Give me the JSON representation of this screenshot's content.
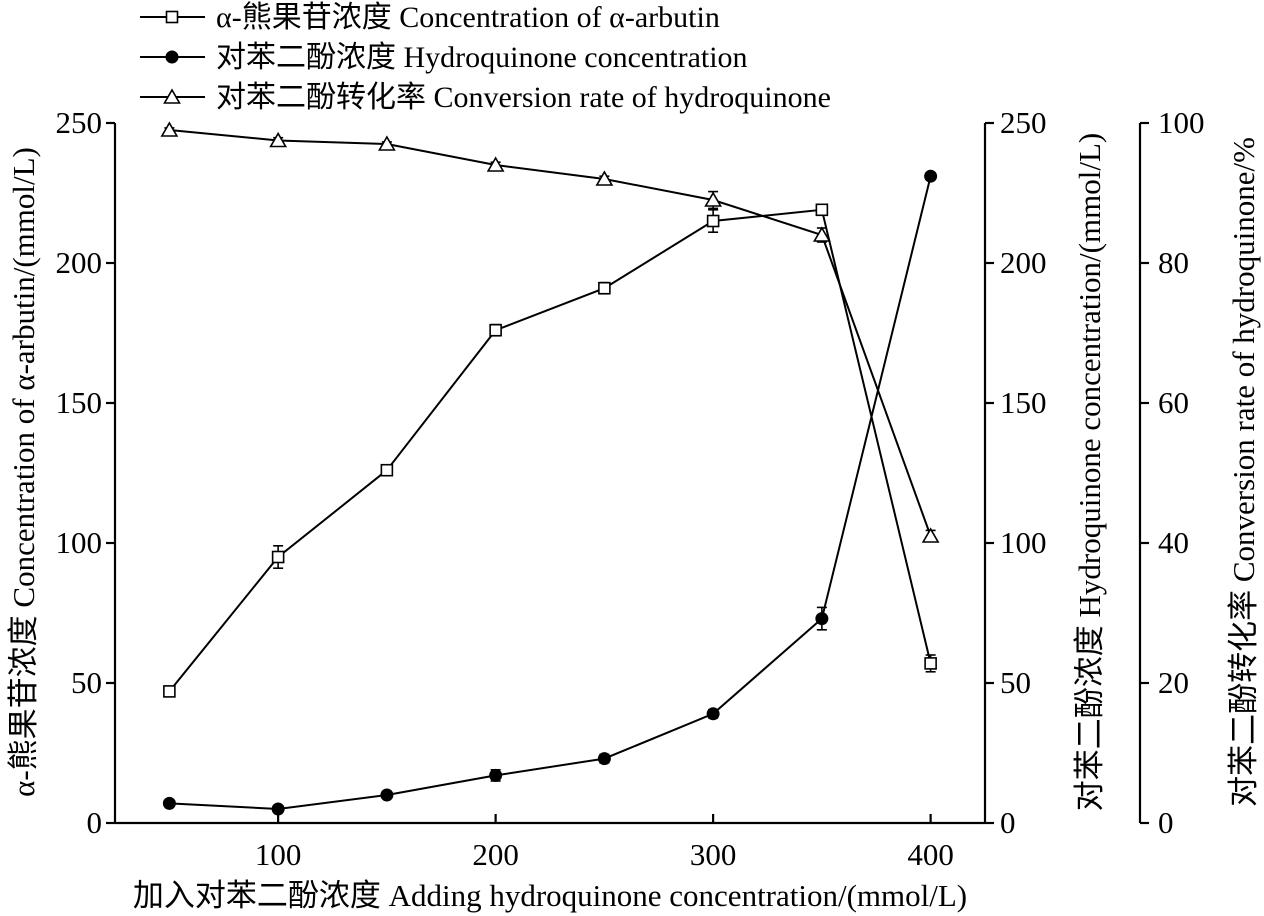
{
  "chart_data": {
    "type": "line",
    "xlabel": "加入对苯二酚浓度  Adding hydroquinone concentration/(mmol/L)",
    "x": [
      50,
      100,
      150,
      200,
      250,
      300,
      350,
      400
    ],
    "xticks": [
      100,
      200,
      300,
      400
    ],
    "xlim": [
      25,
      425
    ],
    "axes": [
      {
        "id": "left",
        "label": "α-熊果苷浓度 Concentration of α-arbutin/(mmol/L)",
        "ylim": [
          0,
          250
        ],
        "ticks": [
          0,
          50,
          100,
          150,
          200,
          250
        ]
      },
      {
        "id": "right1",
        "label": "对苯二酚浓度 Hydroquinone concentration/(mmol/L)",
        "ylim": [
          0,
          250
        ],
        "ticks": [
          0,
          50,
          100,
          150,
          200,
          250
        ]
      },
      {
        "id": "right2",
        "label": "对苯二酚转化率 Conversion rate of hydroquinone/%",
        "ylim": [
          0,
          100
        ],
        "ticks": [
          0,
          20,
          40,
          60,
          80,
          100
        ]
      }
    ],
    "series": [
      {
        "name": "α-熊果苷浓度 Concentration of α-arbutin",
        "axis": "left",
        "marker": "open-square",
        "values": [
          47,
          95,
          126,
          176,
          191,
          215,
          219,
          57
        ],
        "errors": [
          1,
          4,
          1,
          2,
          2,
          4,
          1,
          3
        ]
      },
      {
        "name": "对苯二酚浓度 Hydroquinone concentration",
        "axis": "right1",
        "marker": "filled-circle",
        "values": [
          7,
          5,
          10,
          17,
          23,
          39,
          73,
          231
        ],
        "errors": [
          0.5,
          0.5,
          0.5,
          2,
          1.5,
          1.5,
          4,
          1
        ]
      },
      {
        "name": "对苯二酚转化率 Conversion rate of hydroquinone",
        "axis": "right2",
        "marker": "open-triangle",
        "values": [
          99,
          97.5,
          97,
          94,
          92,
          89,
          84,
          41
        ],
        "errors": [
          0.3,
          0.4,
          0.3,
          0.4,
          0.4,
          1.2,
          1,
          0.8
        ]
      }
    ],
    "legend": "top-left",
    "grid": false
  }
}
